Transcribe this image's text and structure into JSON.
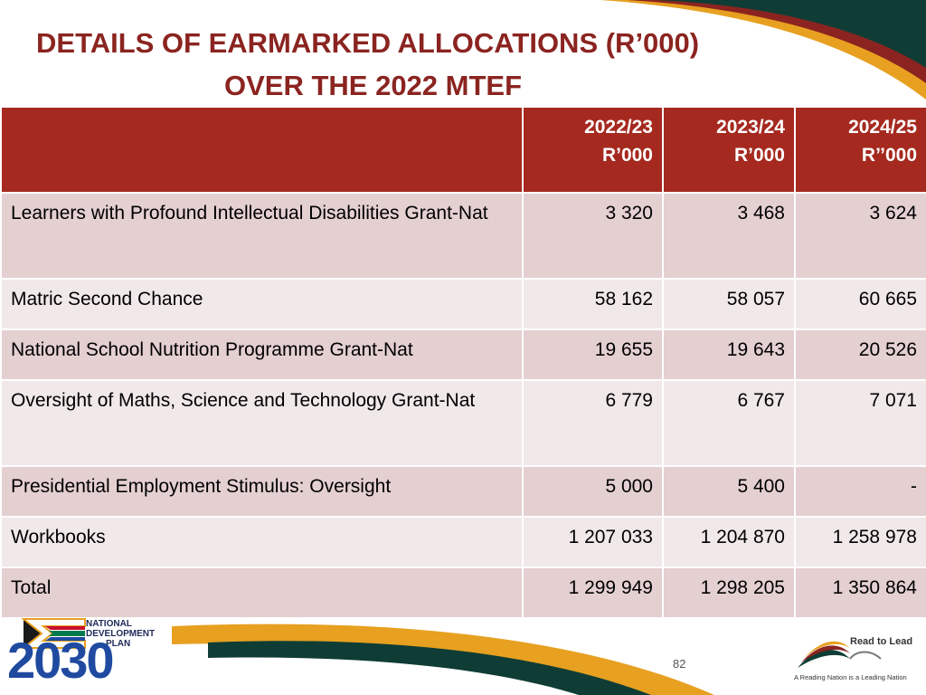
{
  "title": {
    "line1": "DETAILS OF EARMARKED ALLOCATIONS (R’000)",
    "line2": "OVER THE 2022 MTEF"
  },
  "table": {
    "headers": [
      {
        "year": "2022/23",
        "unit": "R’000"
      },
      {
        "year": "2023/24",
        "unit": "R’000"
      },
      {
        "year": "2024/25",
        "unit": "R’’000"
      }
    ],
    "rows": [
      {
        "label": "Learners with Profound Intellectual Disabilities Grant-Nat",
        "v1": "3 320",
        "v2": "3 468",
        "v3": "3 624"
      },
      {
        "label": "Matric Second Chance",
        "v1": "58 162",
        "v2": "58 057",
        "v3": "60 665"
      },
      {
        "label": "National School Nutrition Programme Grant-Nat",
        "v1": "19 655",
        "v2": "19 643",
        "v3": "20 526"
      },
      {
        "label": "Oversight of Maths, Science and Technology Grant-Nat",
        "v1": "6 779",
        "v2": "6 767",
        "v3": "7 071"
      },
      {
        "label": "Presidential Employment Stimulus: Oversight",
        "v1": "5 000",
        "v2": "5 400",
        "v3": "-"
      },
      {
        "label": "Workbooks",
        "v1": "1 207 033",
        "v2": "1 204 870",
        "v3": "1 258 978"
      },
      {
        "label": "Total",
        "v1": "1 299 949",
        "v2": "1 298 205",
        "v3": "1 350 864"
      }
    ]
  },
  "footer": {
    "ndp": {
      "line1": "NATIONAL",
      "line2": "DEVELOPMENT",
      "line3": "PLAN",
      "year": "2030"
    },
    "page_number": "82",
    "read_to_lead": {
      "title": "Read to Lead",
      "tagline": "A Reading Nation is a Leading Nation"
    }
  },
  "colors": {
    "title": "#8b2420",
    "header_bg": "#a5291f",
    "row_odd": "#e4cfd1",
    "row_even": "#f1e8e9",
    "accent_green": "#0f3d35",
    "accent_orange": "#e7a020"
  }
}
